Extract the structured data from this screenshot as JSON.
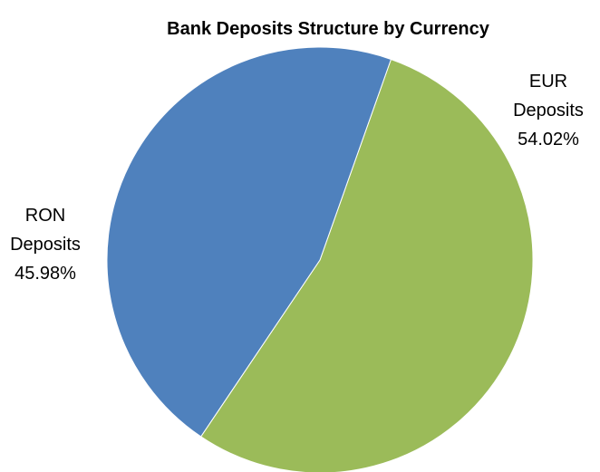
{
  "chart_data": {
    "type": "pie",
    "title": "Bank Deposits Structure by Currency",
    "slices": [
      {
        "label": "EUR Deposits",
        "value": 54.02,
        "display": "54.02%",
        "color": "#9bbb59"
      },
      {
        "label": "RON Deposits",
        "value": 45.98,
        "display": "45.98%",
        "color": "#4f81bd"
      }
    ],
    "legend": "none",
    "data_labels": "outside"
  }
}
